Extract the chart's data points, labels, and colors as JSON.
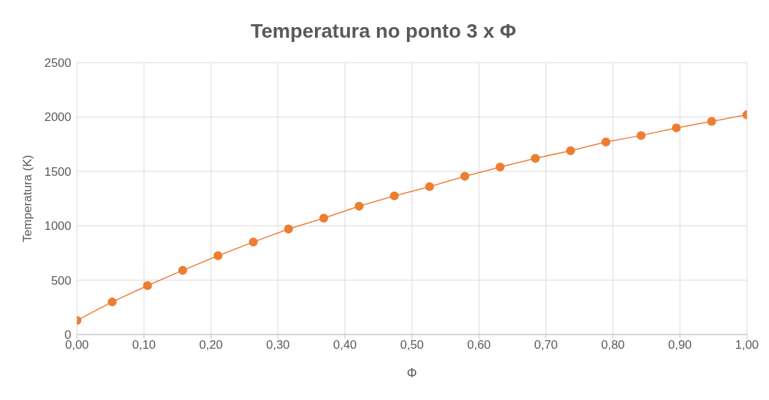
{
  "chart_data": {
    "type": "line",
    "title": "Temperatura no ponto 3 x Φ",
    "xlabel": "Φ",
    "ylabel": "Temperatura (K)",
    "x": [
      0,
      0.0526,
      0.1053,
      0.1579,
      0.2105,
      0.2632,
      0.3158,
      0.3684,
      0.4211,
      0.4737,
      0.5263,
      0.5789,
      0.6316,
      0.6842,
      0.7368,
      0.7895,
      0.8421,
      0.8947,
      0.9474,
      1
    ],
    "series": [
      {
        "color": "#ed7d31",
        "values": [
          130,
          300,
          450,
          590,
          725,
          850,
          970,
          1070,
          1180,
          1275,
          1360,
          1455,
          1540,
          1620,
          1690,
          1770,
          1830,
          1900,
          1960,
          2020
        ]
      }
    ],
    "xlim": [
      0,
      1
    ],
    "xticks": [
      {
        "value": 0,
        "label": "0,00"
      },
      {
        "value": 0.1,
        "label": "0,10"
      },
      {
        "value": 0.2,
        "label": "0,20"
      },
      {
        "value": 0.3,
        "label": "0,30"
      },
      {
        "value": 0.4,
        "label": "0,40"
      },
      {
        "value": 0.5,
        "label": "0,50"
      },
      {
        "value": 0.6,
        "label": "0,60"
      },
      {
        "value": 0.7,
        "label": "0,70"
      },
      {
        "value": 0.8,
        "label": "0,80"
      },
      {
        "value": 0.9,
        "label": "0,90"
      },
      {
        "value": 1,
        "label": "1,00"
      }
    ],
    "ylim": [
      0,
      2500
    ],
    "yticks": [
      0,
      500,
      1000,
      1500,
      2000,
      2500
    ],
    "grid": true,
    "marker": "circle",
    "line_style": "solid",
    "legend": false
  }
}
